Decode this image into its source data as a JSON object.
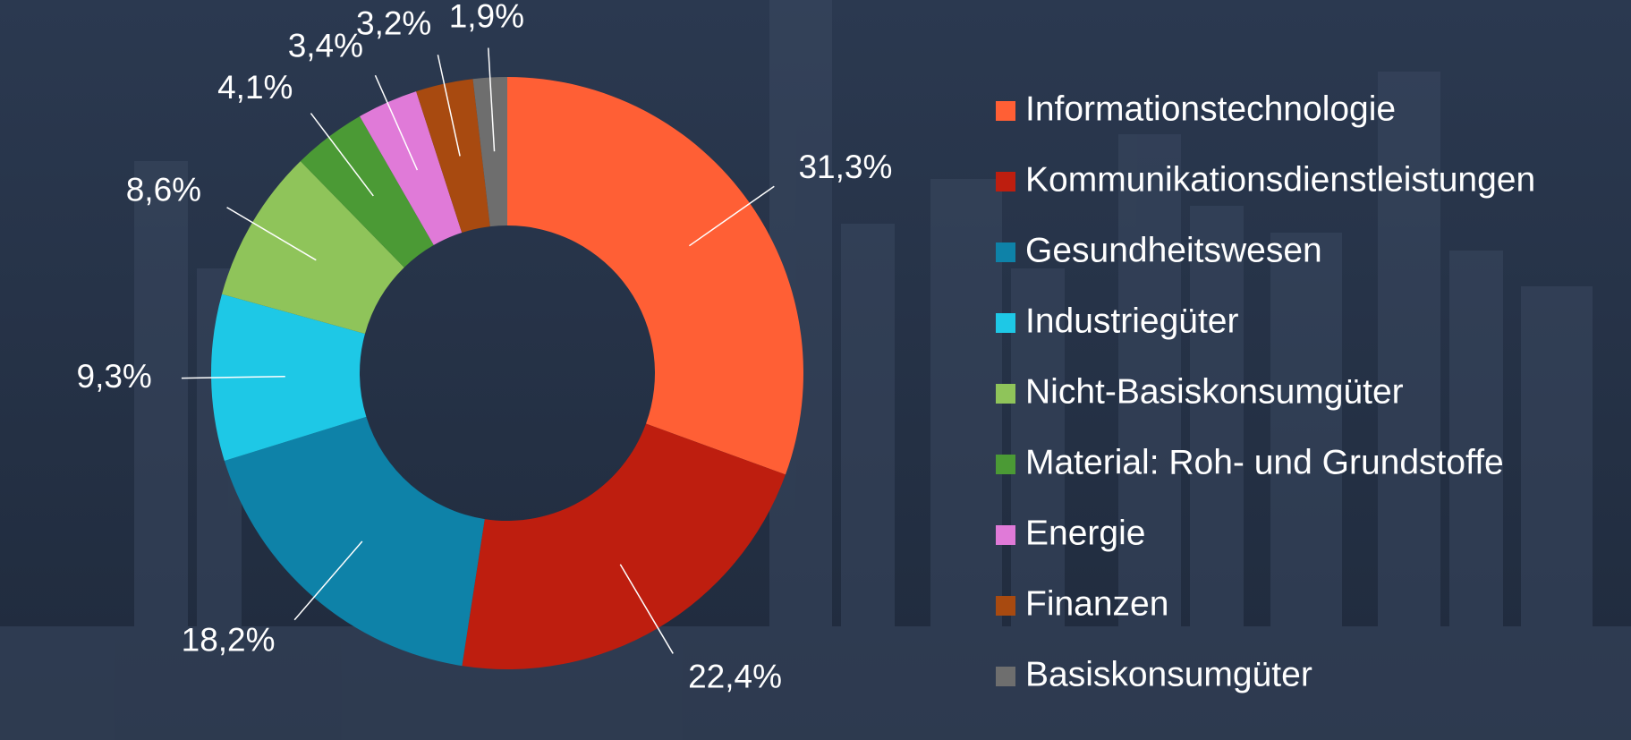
{
  "chart_data": {
    "type": "donut",
    "categories": [
      "Informationstechnologie",
      "Kommunikationsdienstleistungen",
      "Gesundheitswesen",
      "Industriegüter",
      "Nicht-Basiskonsumgüter",
      "Material: Roh- und Grundstoffe",
      "Energie",
      "Finanzen",
      "Basiskonsumgüter"
    ],
    "values": [
      31.3,
      22.4,
      18.2,
      9.3,
      8.6,
      4.1,
      3.4,
      3.2,
      1.9
    ],
    "value_labels": [
      "31,3%",
      "22,4%",
      "18,2%",
      "9,3%",
      "8,6%",
      "4,1%",
      "3,4%",
      "3,2%",
      "1,9%"
    ],
    "colors": [
      "#ff5f35",
      "#be1e0f",
      "#0e82a8",
      "#1ec8e6",
      "#8fc45a",
      "#4b9a35",
      "#e07ad8",
      "#a84a10",
      "#6e6e6e"
    ],
    "legend": "right"
  }
}
